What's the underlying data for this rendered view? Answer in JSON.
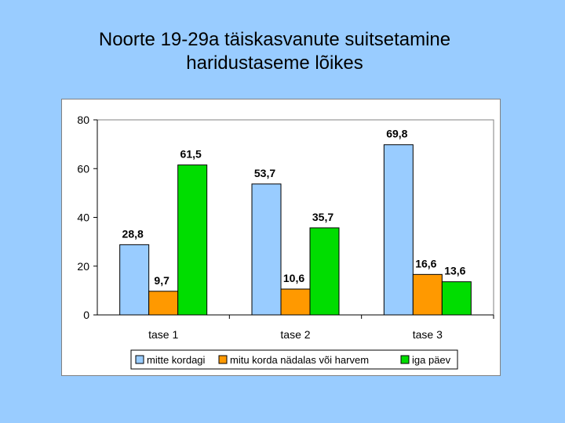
{
  "title": {
    "line1": "Noorte 19-29a täiskasvanute suitsetamine",
    "line2": "haridustaseme lõikes"
  },
  "chart_data": {
    "type": "bar",
    "categories": [
      "tase 1",
      "tase 2",
      "tase 3"
    ],
    "series": [
      {
        "name": "mitte kordagi",
        "values": [
          28.8,
          53.7,
          69.8
        ],
        "labels": [
          "28,8",
          "53,7",
          "69,8"
        ],
        "color": "#99ccff"
      },
      {
        "name": "mitu korda nädalas või harvem",
        "values": [
          9.7,
          10.6,
          16.6
        ],
        "labels": [
          "9,7",
          "10,6",
          "16,6"
        ],
        "color": "#ff9900"
      },
      {
        "name": "iga päev",
        "values": [
          61.5,
          35.7,
          13.6
        ],
        "labels": [
          "61,5",
          "35,7",
          "13,6"
        ],
        "color": "#00dd00"
      }
    ],
    "ylim": [
      0,
      80
    ],
    "yticks": [
      0,
      20,
      40,
      60,
      80
    ],
    "grid": false,
    "legend_position": "bottom"
  },
  "colors": {
    "background": "#99ccff",
    "plot_background": "#ffffff",
    "bar_outline": "#000000"
  }
}
